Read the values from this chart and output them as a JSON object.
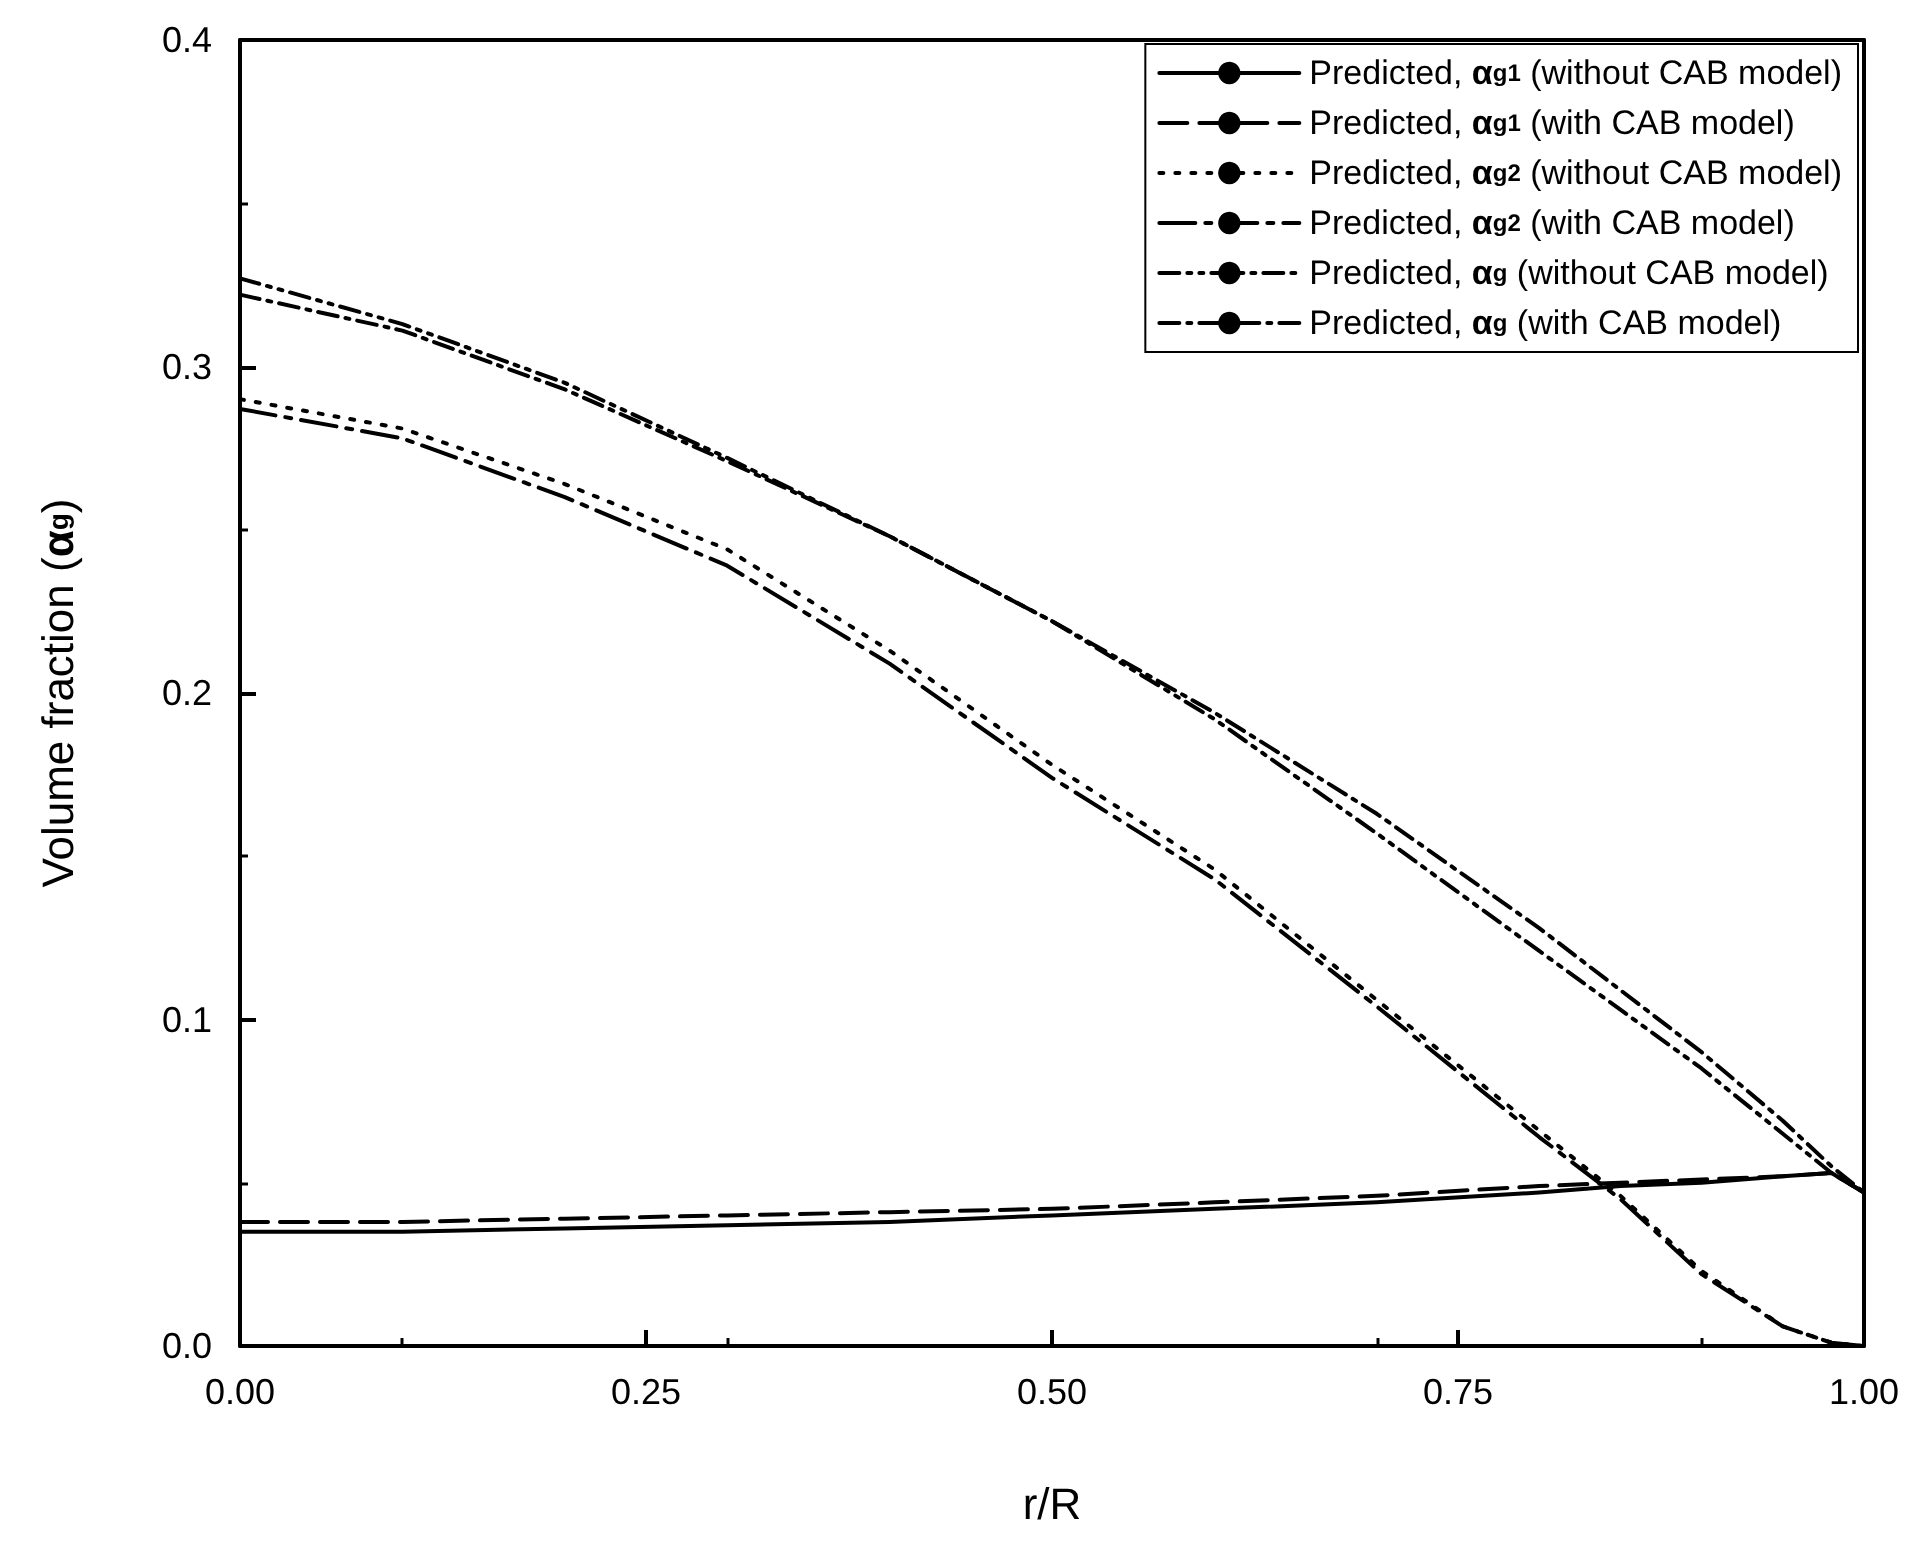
{
  "chart_data": {
    "type": "line",
    "xlabel": "r/R",
    "ylabel": "Volume fraction (α$_{g}$)",
    "xlim": [
      0,
      1
    ],
    "ylim": [
      0,
      0.4
    ],
    "xticks": [
      {
        "value": 0,
        "label": "0.00"
      },
      {
        "value": 0.25,
        "label": "0.25"
      },
      {
        "value": 0.5,
        "label": "0.50"
      },
      {
        "value": 0.75,
        "label": "0.75"
      },
      {
        "value": 1,
        "label": "1.00"
      }
    ],
    "yticks": [
      {
        "value": 0,
        "label": "0.0"
      },
      {
        "value": 0.1,
        "label": "0.1"
      },
      {
        "value": 0.2,
        "label": "0.2"
      },
      {
        "value": 0.3,
        "label": "0.3"
      },
      {
        "value": 0.4,
        "label": "0.4"
      }
    ],
    "x": [
      0,
      0.1,
      0.2,
      0.3,
      0.4,
      0.5,
      0.6,
      0.7,
      0.8,
      0.85,
      0.9,
      0.95,
      0.98,
      1
    ],
    "legend": "top right",
    "grid": false,
    "marker": "none",
    "series": [
      {
        "name": "Predicted, α$_{g1}$ (without CAB model)",
        "color": "#000000",
        "line_style": "solid",
        "values": [
          0.035,
          0.035,
          0.036,
          0.037,
          0.038,
          0.04,
          0.042,
          0.044,
          0.047,
          0.049,
          0.05,
          0.052,
          0.053,
          0.047
        ]
      },
      {
        "name": "Predicted, α$_{g1}$ (with CAB model)",
        "color": "#000000",
        "line_style": "dashed",
        "values": [
          0.038,
          0.038,
          0.039,
          0.04,
          0.041,
          0.042,
          0.044,
          0.046,
          0.049,
          0.05,
          0.051,
          0.052,
          0.053,
          0.047
        ]
      },
      {
        "name": "Predicted, α$_{g2}$ (without CAB model)",
        "color": "#000000",
        "line_style": "dotted",
        "values": [
          0.29,
          0.281,
          0.264,
          0.244,
          0.213,
          0.178,
          0.146,
          0.106,
          0.066,
          0.046,
          0.023,
          0.006,
          0.001,
          0
        ]
      },
      {
        "name": "Predicted, α$_{g2}$ (with CAB model)",
        "color": "#000000",
        "line_style": "longdashdot",
        "values": [
          0.287,
          0.278,
          0.26,
          0.239,
          0.209,
          0.174,
          0.143,
          0.104,
          0.064,
          0.045,
          0.022,
          0.006,
          0.001,
          0
        ]
      },
      {
        "name": "Predicted, α$_{g}$ (without CAB model)",
        "color": "#000000",
        "line_style": "dashdotdot",
        "values": [
          0.327,
          0.313,
          0.295,
          0.272,
          0.248,
          0.222,
          0.192,
          0.157,
          0.121,
          0.103,
          0.085,
          0.065,
          0.053,
          0.047
        ]
      },
      {
        "name": "Predicted, α$_{g}$ (with CAB model)",
        "color": "#000000",
        "line_style": "dashdot",
        "values": [
          0.322,
          0.311,
          0.293,
          0.271,
          0.248,
          0.222,
          0.194,
          0.163,
          0.128,
          0.109,
          0.09,
          0.069,
          0.055,
          0.047
        ]
      }
    ]
  }
}
